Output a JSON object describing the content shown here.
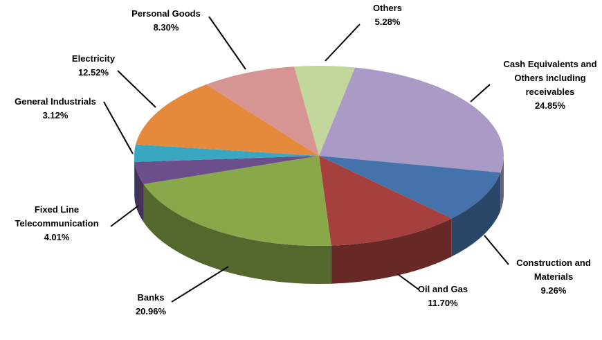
{
  "chart_data": {
    "type": "pie3d",
    "categories": [
      "Others",
      "Cash Equivalents and Others including receivables",
      "Construction and Materials",
      "Oil and Gas",
      "Banks",
      "Fixed Line Telecommunication",
      "General Industrials",
      "Electricity",
      "Personal Goods"
    ],
    "values": [
      5.28,
      24.85,
      9.26,
      11.7,
      20.96,
      4.01,
      3.12,
      12.52,
      8.3
    ],
    "value_labels": [
      "5.28%",
      "24.85%",
      "9.26%",
      "11.70%",
      "20.96%",
      "4.01%",
      "3.12%",
      "12.52%",
      "8.30%"
    ],
    "colors": [
      "#c3d69b",
      "#a99bc5",
      "#4472aa",
      "#a6403e",
      "#88a84a",
      "#6c4f8a",
      "#3aa7c0",
      "#e5893c",
      "#d69592"
    ]
  }
}
